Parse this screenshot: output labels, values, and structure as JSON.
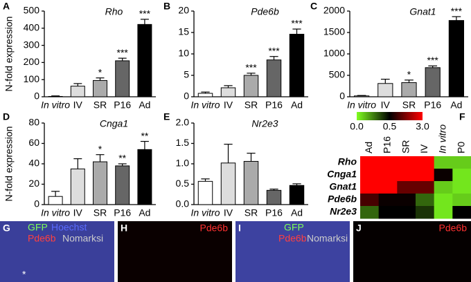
{
  "chart_data": [
    {
      "panel": "A",
      "type": "bar",
      "title": "Rho",
      "ylabel": "N-fold expression",
      "categories": [
        "In vitro",
        "IV",
        "SR",
        "P16",
        "Ad"
      ],
      "values": [
        2,
        62,
        95,
        210,
        422
      ],
      "errors": [
        3,
        15,
        15,
        15,
        30
      ],
      "annotations": [
        null,
        null,
        "*",
        "***",
        "***"
      ],
      "colors": [
        "#ffffff",
        "#dddddd",
        "#aaaaaa",
        "#666666",
        "#000000"
      ],
      "ylim": [
        0,
        500
      ],
      "yticks": [
        0,
        100,
        200,
        300,
        400,
        500
      ]
    },
    {
      "panel": "B",
      "type": "bar",
      "title": "Pde6b",
      "categories": [
        "In vitro",
        "IV",
        "SR",
        "P16",
        "Ad"
      ],
      "values": [
        0.8,
        2.1,
        5.0,
        8.6,
        14.6
      ],
      "errors": [
        0.3,
        0.5,
        0.5,
        0.8,
        1.2
      ],
      "annotations": [
        null,
        null,
        "***",
        "***",
        "***"
      ],
      "colors": [
        "#ffffff",
        "#dddddd",
        "#aaaaaa",
        "#666666",
        "#000000"
      ],
      "ylim": [
        0,
        20
      ],
      "yticks": [
        0,
        5,
        10,
        15,
        20
      ]
    },
    {
      "panel": "C",
      "type": "bar",
      "title": "Gnat1",
      "categories": [
        "In vitro",
        "IV",
        "SR",
        "P16",
        "Ad"
      ],
      "values": [
        20,
        310,
        330,
        680,
        1780
      ],
      "errors": [
        10,
        100,
        60,
        40,
        90
      ],
      "annotations": [
        null,
        null,
        "*",
        "***",
        "***"
      ],
      "colors": [
        "#ffffff",
        "#dddddd",
        "#aaaaaa",
        "#666666",
        "#000000"
      ],
      "ylim": [
        0,
        2000
      ],
      "yticks": [
        0,
        500,
        1000,
        1500,
        2000
      ]
    },
    {
      "panel": "D",
      "type": "bar",
      "title": "Cnga1",
      "ylabel": "N-fold expression",
      "categories": [
        "In vitro",
        "IV",
        "SR",
        "P16",
        "Ad"
      ],
      "values": [
        8,
        35,
        42,
        38,
        54
      ],
      "errors": [
        5,
        10,
        7,
        2,
        8
      ],
      "annotations": [
        null,
        null,
        "*",
        "**",
        "**"
      ],
      "colors": [
        "#ffffff",
        "#dddddd",
        "#aaaaaa",
        "#666666",
        "#000000"
      ],
      "ylim": [
        0,
        80
      ],
      "yticks": [
        0,
        20,
        40,
        60,
        80
      ]
    },
    {
      "panel": "E",
      "type": "bar",
      "title": "Nr2e3",
      "categories": [
        "In vitro",
        "IV",
        "SR",
        "P16",
        "Ad"
      ],
      "values": [
        0.57,
        1.02,
        1.06,
        0.35,
        0.47
      ],
      "errors": [
        0.06,
        0.46,
        0.2,
        0.03,
        0.04
      ],
      "annotations": [
        null,
        null,
        null,
        null,
        null
      ],
      "colors": [
        "#ffffff",
        "#dddddd",
        "#aaaaaa",
        "#666666",
        "#000000"
      ],
      "ylim": [
        0,
        2
      ],
      "yticks": [
        {
          "value": 0,
          "label": "0.0"
        },
        {
          "value": 0.5,
          "label": "0.5"
        },
        {
          "value": 1,
          "label": "1.0"
        },
        {
          "value": 1.5,
          "label": "1.5"
        },
        {
          "value": 2,
          "label": "2.0"
        }
      ]
    },
    {
      "panel": "F",
      "type": "heatmap",
      "columns": [
        "Ad",
        "P16",
        "SR",
        "IV",
        "In vitro",
        "P0"
      ],
      "rows": [
        "Rho",
        "Cnga1",
        "Gnat1",
        "Pde6b",
        "Nr2e3"
      ],
      "values": [
        [
          3,
          3,
          3,
          3,
          0.1,
          0.1
        ],
        [
          3,
          3,
          3,
          3,
          0.6,
          0.05
        ],
        [
          3,
          3,
          1.5,
          1.5,
          0.1,
          0.05
        ],
        [
          1.2,
          0.6,
          0.6,
          0.3,
          0.05,
          0.1
        ],
        [
          0.3,
          0.5,
          0.5,
          0.4,
          0.05,
          0.5
        ]
      ],
      "color_stops": [
        0,
        0.5,
        3
      ],
      "stop_colors": [
        "#80ff20",
        "#000000",
        "#ff0000"
      ],
      "colorbar_ticks": [
        {
          "value": 0,
          "label": "0.0"
        },
        {
          "value": 0.5,
          "label": "0.5"
        },
        {
          "value": 3,
          "label": "3.0"
        }
      ]
    }
  ],
  "images": [
    {
      "panel": "G",
      "background": "#3a3f9a",
      "labels": [
        {
          "text": "GFP",
          "color": "#7dff5a"
        },
        {
          "text": "Hoechst",
          "color": "#5a6bff"
        },
        {
          "text": "Pde6b",
          "color": "#ff4040"
        },
        {
          "text": "Nomarksi",
          "color": "#cccccc"
        },
        {
          "text": "*",
          "color": "#ffffff"
        }
      ]
    },
    {
      "panel": "H",
      "background": "#0a0000",
      "labels": [
        {
          "text": "Pde6b",
          "color": "#ff3030"
        }
      ]
    },
    {
      "panel": "I",
      "background": "#3d42a0",
      "labels": [
        {
          "text": "GFP",
          "color": "#7dff5a"
        },
        {
          "text": "Pde6b",
          "color": "#ff4040"
        },
        {
          "text": "Nomarksi",
          "color": "#cccccc"
        }
      ]
    },
    {
      "panel": "J",
      "background": "#050000",
      "labels": [
        {
          "text": "Pde6b",
          "color": "#ff3030"
        }
      ]
    }
  ]
}
